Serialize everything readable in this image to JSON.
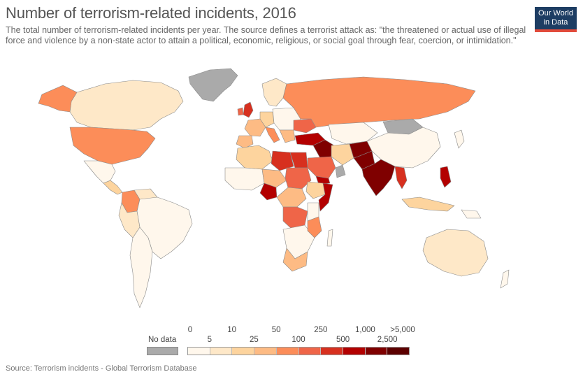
{
  "title": "Number of terrorism-related incidents, 2016",
  "subtitle": "The total number of terrorism-related incidents per year. The source defines a terrorist attack as: \"the threatened or actual use of illegal force and violence by a non-state actor to attain a political, economic, religious, or social goal through fear, coercion, or intimidation.\"",
  "logo": {
    "line1": "Our World",
    "line2": "in Data",
    "bg_color": "#1d3d63",
    "accent_color": "#e24b3b"
  },
  "source": "Source: Terrorism incidents - Global Terrorism Database",
  "legend": {
    "no_data_label": "No data",
    "no_data_color": "#aaaaaa",
    "bins": [
      {
        "color": "#fff7ec"
      },
      {
        "color": "#fee8c8"
      },
      {
        "color": "#fdd49e"
      },
      {
        "color": "#fdbb84"
      },
      {
        "color": "#fc8d59"
      },
      {
        "color": "#ef6548"
      },
      {
        "color": "#d7301f"
      },
      {
        "color": "#b30000"
      },
      {
        "color": "#7f0000"
      },
      {
        "color": "#5c0000"
      }
    ],
    "top_ticks": [
      "0",
      "10",
      "50",
      "250",
      "1,000",
      ">5,000"
    ],
    "bottom_ticks": [
      "5",
      "25",
      "100",
      "500",
      "2,500"
    ]
  },
  "map_data": {
    "colors": {
      "no_data": "#aaaaaa",
      "very_low": "#fff7ec",
      "low": "#fee8c8",
      "mid_low": "#fdd49e",
      "mid": "#fc8d59",
      "high": "#ef6548",
      "very_high": "#d7301f",
      "extreme": "#b30000",
      "max": "#7f0000",
      "ocean": "#ffffff",
      "border": "#8a8a8a"
    }
  }
}
